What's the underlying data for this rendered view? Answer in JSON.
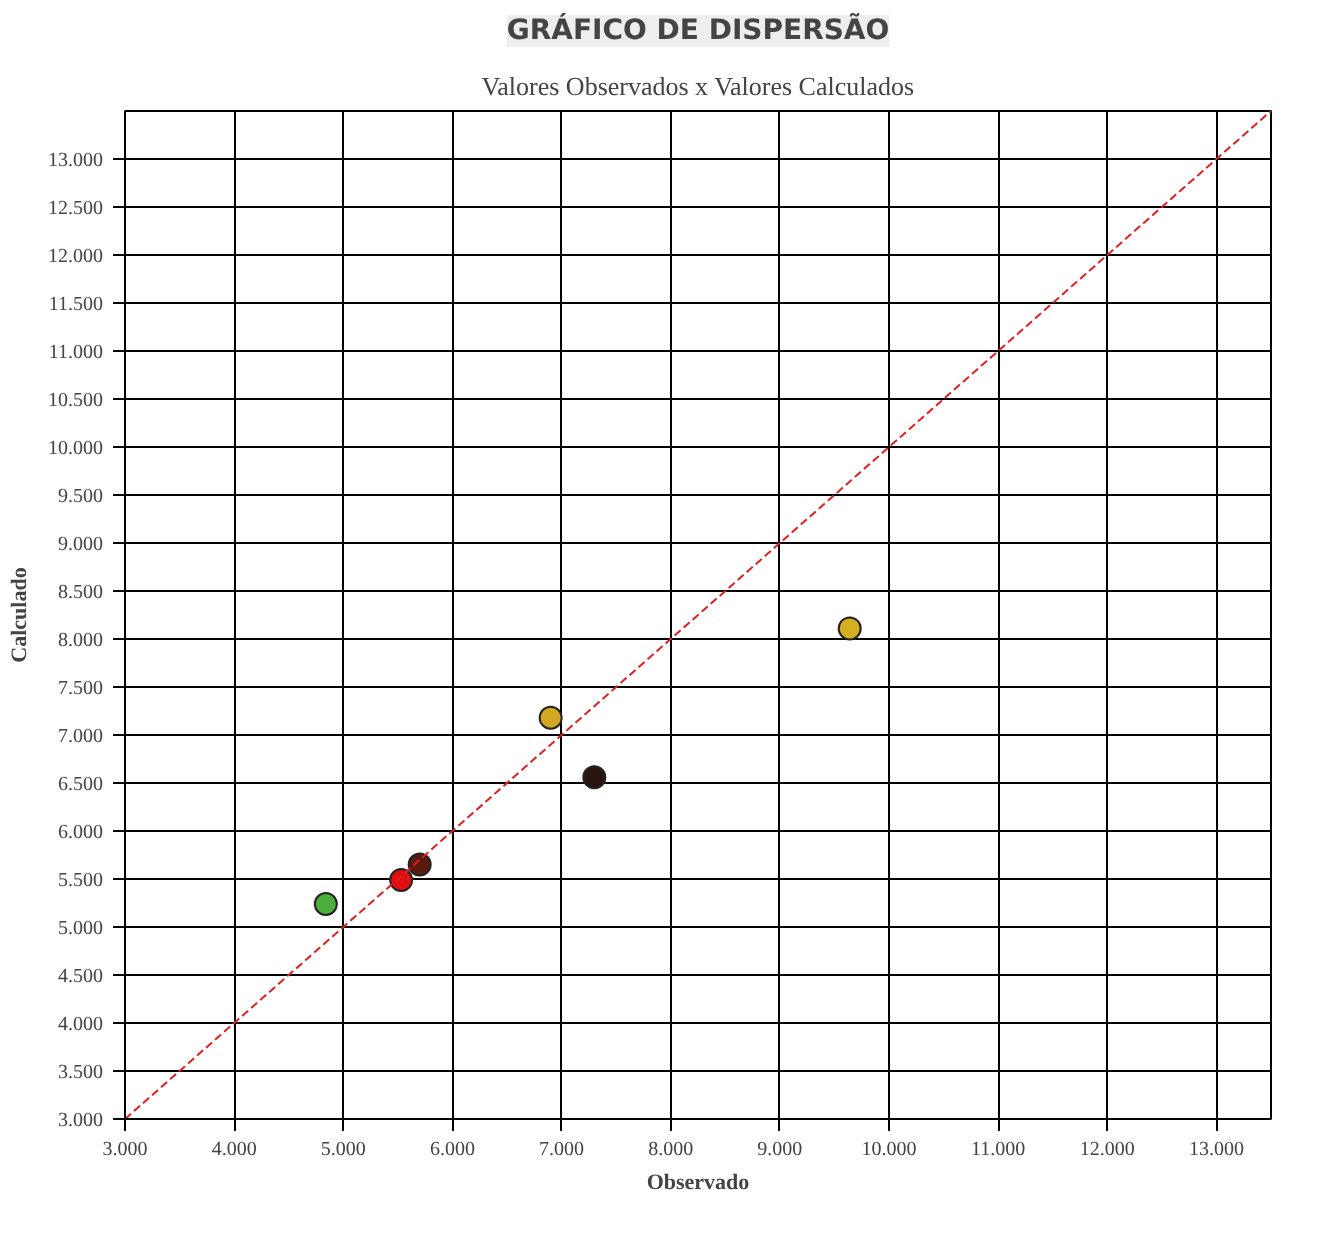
{
  "chart_data": {
    "type": "scatter",
    "title": "GRÁFICO DE DISPERSÃO",
    "subtitle": "Valores Observados x Valores Calculados",
    "xlabel": "Observado",
    "ylabel": "Calculado",
    "xlim": [
      3000,
      13500
    ],
    "ylim": [
      3000,
      13500
    ],
    "xticks": [
      {
        "value": 3000,
        "label": "3.000"
      },
      {
        "value": 4000,
        "label": "4.000"
      },
      {
        "value": 5000,
        "label": "5.000"
      },
      {
        "value": 6000,
        "label": "6.000"
      },
      {
        "value": 7000,
        "label": "7.000"
      },
      {
        "value": 8000,
        "label": "8.000"
      },
      {
        "value": 9000,
        "label": "9.000"
      },
      {
        "value": 10000,
        "label": "10.000"
      },
      {
        "value": 11000,
        "label": "11.000"
      },
      {
        "value": 12000,
        "label": "12.000"
      },
      {
        "value": 13000,
        "label": "13.000"
      }
    ],
    "yticks": [
      {
        "value": 3000,
        "label": "3.000"
      },
      {
        "value": 3500,
        "label": "3.500"
      },
      {
        "value": 4000,
        "label": "4.000"
      },
      {
        "value": 4500,
        "label": "4.500"
      },
      {
        "value": 5000,
        "label": "5.000"
      },
      {
        "value": 5500,
        "label": "5.500"
      },
      {
        "value": 6000,
        "label": "6.000"
      },
      {
        "value": 6500,
        "label": "6.500"
      },
      {
        "value": 7000,
        "label": "7.000"
      },
      {
        "value": 7500,
        "label": "7.500"
      },
      {
        "value": 8000,
        "label": "8.000"
      },
      {
        "value": 8500,
        "label": "8.500"
      },
      {
        "value": 9000,
        "label": "9.000"
      },
      {
        "value": 9500,
        "label": "9.500"
      },
      {
        "value": 10000,
        "label": "10.000"
      },
      {
        "value": 10500,
        "label": "10.500"
      },
      {
        "value": 11000,
        "label": "11.000"
      },
      {
        "value": 11500,
        "label": "11.500"
      },
      {
        "value": 12000,
        "label": "12.000"
      },
      {
        "value": 12500,
        "label": "12.500"
      },
      {
        "value": 13000,
        "label": "13.000"
      }
    ],
    "grid": true,
    "series": [
      {
        "marker": "circle",
        "x": [
          4840,
          5530,
          5700,
          6900,
          7300,
          9640
        ],
        "values": [
          5240,
          5490,
          5650,
          7180,
          6560,
          8110
        ],
        "colors": [
          "#4caf3c",
          "#e01010",
          "#5a1a10",
          "#d4a820",
          "#2a1410",
          "#d4b020"
        ]
      },
      {
        "type": "line",
        "x": [
          3000,
          13500
        ],
        "values": [
          3000,
          13500
        ],
        "color": "#e02020",
        "line_style": "dashed"
      }
    ]
  }
}
